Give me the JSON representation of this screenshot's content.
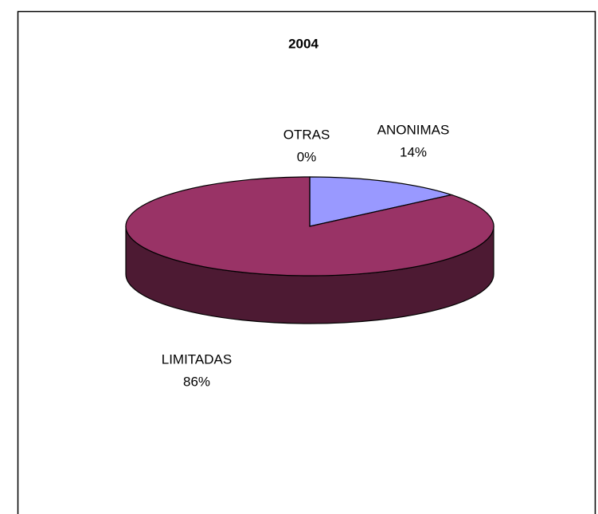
{
  "chart_data": {
    "type": "pie3d",
    "title": "2004",
    "categories": [
      "ANONIMAS",
      "LIMITADAS",
      "OTRAS"
    ],
    "values": [
      14,
      86,
      0
    ],
    "value_labels": [
      "14%",
      "86%",
      "0%"
    ],
    "colors": [
      "#9999ff",
      "#993366",
      "#ffffcc"
    ]
  }
}
